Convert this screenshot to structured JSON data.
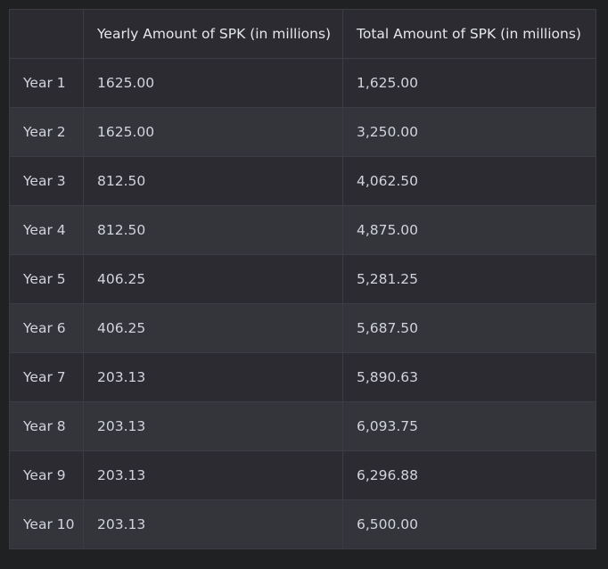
{
  "table": {
    "headers": [
      "",
      "Yearly Amount of SPK (in millions)",
      "Total Amount of SPK (in millions)"
    ],
    "rows": [
      [
        "Year 1",
        "1625.00",
        "1,625.00"
      ],
      [
        "Year 2",
        "1625.00",
        "3,250.00"
      ],
      [
        "Year 3",
        "812.50",
        "4,062.50"
      ],
      [
        "Year 4",
        "812.50",
        "4,875.00"
      ],
      [
        "Year 5",
        "406.25",
        "5,281.25"
      ],
      [
        "Year 6",
        "406.25",
        "5,687.50"
      ],
      [
        "Year 7",
        "203.13",
        "5,890.63"
      ],
      [
        "Year 8",
        "203.13",
        "6,093.75"
      ],
      [
        "Year 9",
        "203.13",
        "6,296.88"
      ],
      [
        "Year 10",
        "203.13",
        "6,500.00"
      ]
    ]
  },
  "colors": {
    "page_background": "#202123",
    "row_odd": "#2b2b31",
    "row_even": "#34343b",
    "border": "#3c3d44",
    "text": "#d1d5db"
  }
}
